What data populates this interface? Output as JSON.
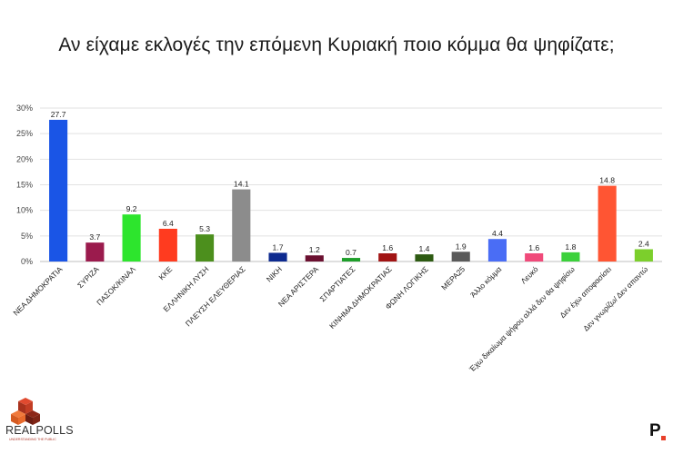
{
  "chart_data": {
    "type": "bar",
    "title": "Αν είχαμε εκλογές την επόμενη Κυριακή ποιο κόμμα θα ψηφίζατε;",
    "categories": [
      "ΝΕΑ ΔΗΜΟΚΡΑΤΙΑ",
      "ΣΥΡΙΖΑ",
      "ΠΑΣΟΚ/ΚΙΝΑΛ",
      "ΚΚΕ",
      "ΕΛΛΗΝΙΚΗ ΛΥΣΗ",
      "ΠΛΕΥΣΗ ΕΛΕΥΘΕΡΙΑΣ",
      "ΝΙΚΗ",
      "ΝΕΑ ΑΡΙΣΤΕΡΑ",
      "ΣΠΑΡΤΙΑΤΕΣ",
      "ΚΙΝΗΜΑ ΔΗΜΟΚΡΑΤΙΑΣ",
      "ΦΩΝΗ ΛΟΓΙΚΗΣ",
      "ΜΕΡΑ25",
      "Άλλο κόμμα",
      "Λευκό",
      "Έχω δικαίωμα ψήφου αλλά δεν θα ψηφίσω",
      "Δεν έχω αποφασίσει",
      "Δεν γνωρίζω/ Δεν απαντώ"
    ],
    "values": [
      27.7,
      3.7,
      9.2,
      6.4,
      5.3,
      14.1,
      1.7,
      1.2,
      0.7,
      1.6,
      1.4,
      1.9,
      4.4,
      1.6,
      1.8,
      14.8,
      2.4
    ],
    "value_labels": [
      "27.7",
      "3.7",
      "9.2",
      "6.4",
      "5.3",
      "14.1",
      "1.7",
      "1.2",
      "0.7",
      "1.6",
      "1.4",
      "1.9",
      "4.4",
      "1.6",
      "1.8",
      "14.8",
      "2.4"
    ],
    "colors": [
      "#1a55e6",
      "#9b1b4d",
      "#2de52d",
      "#ff3b1f",
      "#4c8f1d",
      "#8c8c8c",
      "#0d2a8f",
      "#6b1030",
      "#1e9e2a",
      "#a11414",
      "#2d5a12",
      "#5a5a5a",
      "#4a6df5",
      "#f04a7a",
      "#3bd13b",
      "#ff5533",
      "#7ccf2c"
    ],
    "ylim": [
      0,
      30
    ],
    "yticks": [
      "0%",
      "5%",
      "10%",
      "15%",
      "20%",
      "25%",
      "30%"
    ],
    "grid": true,
    "xlabel": "",
    "ylabel": ""
  },
  "branding": {
    "logo_text": "REALPOLLS",
    "logo_tagline": "UNDERSTANDING THE PUBLIC",
    "publisher_mark": "P"
  }
}
